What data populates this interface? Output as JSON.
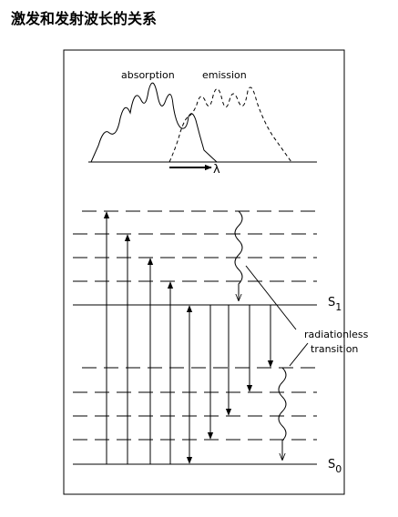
{
  "title": "激发和发射波长的关系",
  "spectrum": {
    "absorption": "absorption",
    "emission": "emission",
    "wavelength": "λ"
  },
  "levels": [
    {
      "label": "S",
      "subscript": "1"
    },
    {
      "label": "S",
      "subscript": "0"
    }
  ],
  "annotation": [
    "radiationless",
    "transition"
  ]
}
